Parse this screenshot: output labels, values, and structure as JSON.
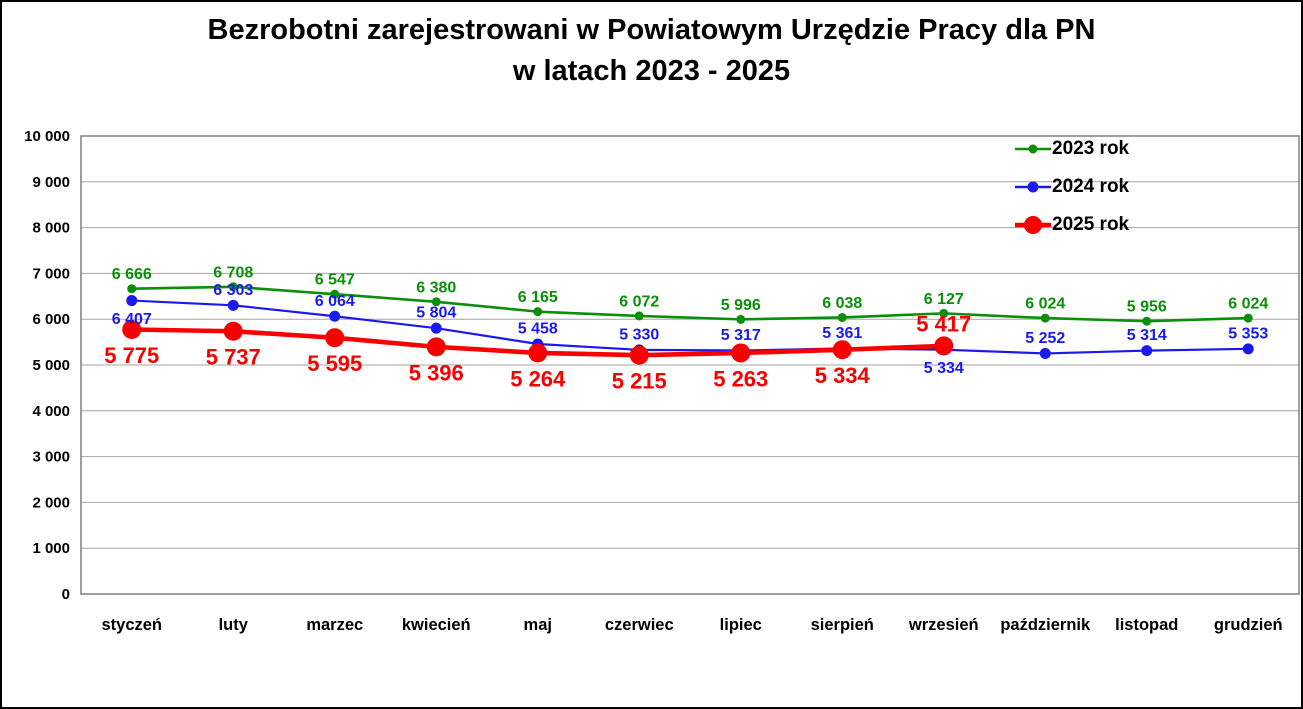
{
  "chart_data": {
    "type": "line",
    "title_lines": [
      "Bezrobotni zarejestrowani w Powiatowym Urzędzie Pracy dla PN",
      "w latach 2023 - 2025"
    ],
    "categories": [
      "styczeń",
      "luty",
      "marzec",
      "kwiecień",
      "maj",
      "czerwiec",
      "lipiec",
      "sierpień",
      "wrzesień",
      "październik",
      "listopad",
      "grudzień"
    ],
    "ylim": [
      0,
      10000
    ],
    "y_tick_step": 1000,
    "y_tick_labels": [
      "0",
      "1 000",
      "2 000",
      "3 000",
      "4 000",
      "5 000",
      "6 000",
      "7 000",
      "8 000",
      "9 000",
      "10 000"
    ],
    "grid": true,
    "gridline_color": "#A6A6A6",
    "plot_border_color": "#7F7F7F",
    "legend_position": "top-right",
    "number_format": "space-thousands",
    "series": [
      {
        "name": "2023 rok",
        "color": "#0B8F0B",
        "line_width": 2.6,
        "marker_radius": 4.5,
        "label_font_size": 16,
        "values": [
          6666,
          6708,
          6547,
          6380,
          6165,
          6072,
          5996,
          6038,
          6127,
          6024,
          5956,
          6024
        ],
        "labels": [
          "6 666",
          "6 708",
          "6 547",
          "6 380",
          "6 165",
          "6 072",
          "5 996",
          "6 038",
          "6 127",
          "6 024",
          "5 956",
          "6 024"
        ],
        "label_positions": [
          "above",
          "above",
          "above",
          "above",
          "above",
          "above",
          "above",
          "above",
          "above",
          "above",
          "above",
          "above"
        ]
      },
      {
        "name": "2024 rok",
        "color": "#1A1AEF",
        "line_width": 2.2,
        "marker_radius": 5.5,
        "label_font_size": 16,
        "values": [
          6407,
          6303,
          6064,
          5804,
          5458,
          5330,
          5317,
          5361,
          5334,
          5252,
          5314,
          5353
        ],
        "labels": [
          "6 407",
          "6 303",
          "6 064",
          "5 804",
          "5 458",
          "5 330",
          "5 317",
          "5 361",
          "5 334",
          "5 252",
          "5 314",
          "5 353"
        ],
        "label_positions": [
          "below",
          "above",
          "above",
          "above",
          "above",
          "above",
          "above",
          "above",
          "below",
          "above",
          "above",
          "above"
        ]
      },
      {
        "name": "2025 rok",
        "color": "#F80000",
        "line_width": 4.6,
        "marker_radius": 9.5,
        "label_font_size": 22,
        "values": [
          5775,
          5737,
          5595,
          5396,
          5264,
          5215,
          5263,
          5334,
          5417
        ],
        "labels": [
          "5 775",
          "5 737",
          "5 595",
          "5 396",
          "5 264",
          "5 215",
          "5 263",
          "5 334",
          "5 417"
        ],
        "label_positions": [
          "below",
          "below",
          "below",
          "below",
          "below",
          "below",
          "below",
          "below",
          "above"
        ]
      }
    ]
  }
}
